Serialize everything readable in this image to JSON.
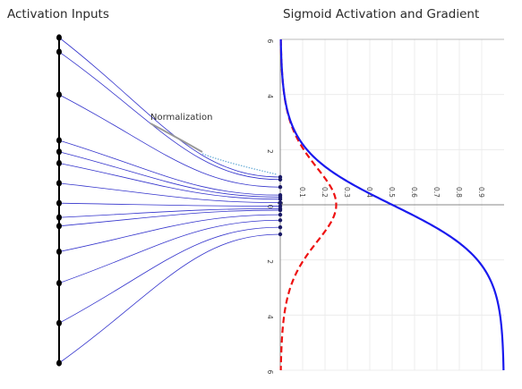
{
  "titles": {
    "left": "Activation Inputs",
    "right": "Sigmoid Activation and Gradient"
  },
  "annotation": "Normalization",
  "colors": {
    "fan_lines": "#3333cc",
    "sigmoid": "#1a1aee",
    "gradient": "#ee1111",
    "highlight": "#999999",
    "points": "#000000"
  },
  "inputs": {
    "values": [
      -5.8,
      -5.3,
      -3.8,
      -2.2,
      -1.8,
      -1.4,
      -0.7,
      0.0,
      0.5,
      0.8,
      1.7,
      2.8,
      4.2,
      5.6
    ]
  },
  "chart_data": {
    "type": "line",
    "title": "Sigmoid Activation and Gradient",
    "orientation": "rotated (input on vertical axis, activation on horizontal axis)",
    "x_axis": {
      "quantity": "z",
      "ylim": [
        -6,
        6
      ],
      "tick_labels": [
        "6",
        "4",
        "2",
        "0",
        "2",
        "4",
        "6"
      ]
    },
    "y_axis": {
      "quantity": "output",
      "lim": [
        0,
        1
      ],
      "tick_labels": [
        "0.1",
        "0.2",
        "0.3",
        "0.4",
        "0.5",
        "0.6",
        "0.7",
        "0.8",
        "0.9"
      ]
    },
    "series": [
      {
        "style": "solid blue",
        "x": [
          -6,
          -5,
          -4,
          -3,
          -2,
          -1.5,
          -1,
          -0.5,
          0,
          0.5,
          1,
          1.5,
          2,
          3,
          4,
          5,
          6
        ],
        "values": [
          0.0025,
          0.0067,
          0.018,
          0.047,
          0.119,
          0.182,
          0.269,
          0.378,
          0.5,
          0.622,
          0.731,
          0.818,
          0.881,
          0.953,
          0.982,
          0.993,
          0.9975
        ]
      },
      {
        "style": "dashed red",
        "x": [
          -6,
          -5,
          -4,
          -3,
          -2,
          -1.5,
          -1,
          -0.5,
          0,
          0.5,
          1,
          1.5,
          2,
          3,
          4,
          5,
          6
        ],
        "values": [
          0.0025,
          0.0066,
          0.018,
          0.045,
          0.105,
          0.149,
          0.197,
          0.235,
          0.25,
          0.235,
          0.197,
          0.149,
          0.105,
          0.045,
          0.018,
          0.0066,
          0.0025
        ]
      }
    ],
    "grid": true
  }
}
